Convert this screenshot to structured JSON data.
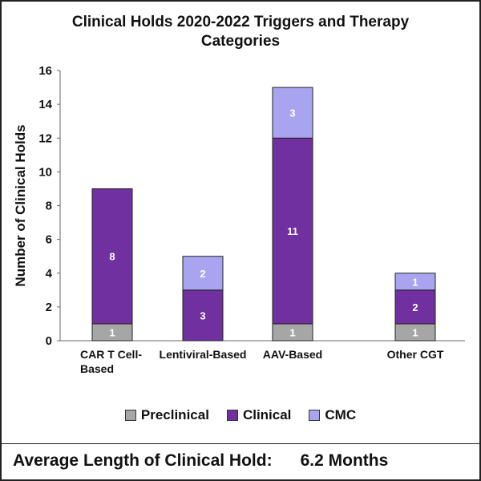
{
  "chart_data": {
    "type": "bar",
    "stacked": true,
    "title": "Clinical Holds 2020-2022 Triggers and Therapy Categories",
    "xlabel": "",
    "ylabel": "Number of Clinical Holds",
    "ylim": [
      0,
      16
    ],
    "yticks": [
      0,
      2,
      4,
      6,
      8,
      10,
      12,
      14,
      16
    ],
    "grid": false,
    "legend_position": "bottom",
    "categories": [
      [
        "CAR T Cell-",
        "Based"
      ],
      [
        "Lentiviral-Based"
      ],
      [
        "AAV-Based"
      ],
      [
        "Other CGT"
      ]
    ],
    "series": [
      {
        "name": "Preclinical",
        "color": "#a6a6a6",
        "values": [
          1,
          0,
          1,
          1
        ]
      },
      {
        "name": "Clinical",
        "color": "#7030a0",
        "values": [
          8,
          3,
          11,
          2
        ]
      },
      {
        "name": "CMC",
        "color": "#a9a4ef",
        "values": [
          0,
          2,
          3,
          1
        ]
      }
    ]
  },
  "footer": {
    "label": "Average Length of Clinical Hold:",
    "value": "6.2 Months"
  }
}
